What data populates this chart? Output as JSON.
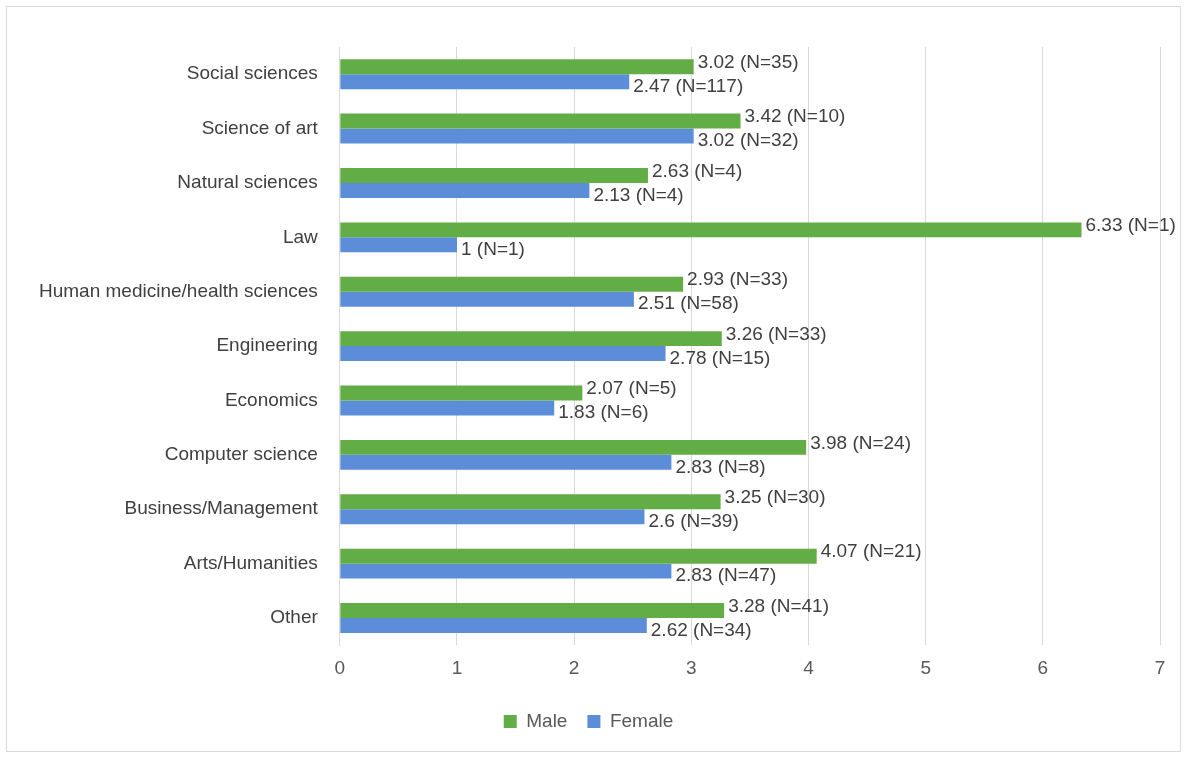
{
  "chart_data": {
    "type": "bar",
    "orientation": "horizontal",
    "categories": [
      "Social sciences",
      "Science of art",
      "Natural sciences",
      "Law",
      "Human medicine/health sciences",
      "Engineering",
      "Economics",
      "Computer science",
      "Business/Management",
      "Arts/Humanities",
      "Other"
    ],
    "series": [
      {
        "name": "Male",
        "color": "#63ad47",
        "values": [
          3.02,
          3.42,
          2.63,
          6.33,
          2.93,
          3.26,
          2.07,
          3.98,
          3.25,
          4.07,
          3.28
        ],
        "value_labels": [
          "3.02 (N=35)",
          "3.42 (N=10)",
          "2.63 (N=4)",
          "6.33 (N=1)",
          "2.93 (N=33)",
          "3.26 (N=33)",
          "2.07 (N=5)",
          "3.98 (N=24)",
          "3.25 (N=30)",
          "4.07 (N=21)",
          "3.28 (N=41)"
        ]
      },
      {
        "name": "Female",
        "color": "#5b8dd9",
        "values": [
          2.47,
          3.02,
          2.13,
          1,
          2.51,
          2.78,
          1.83,
          2.83,
          2.6,
          2.83,
          2.62
        ],
        "value_labels": [
          "2.47 (N=117)",
          "3.02 (N=32)",
          "2.13 (N=4)",
          "1 (N=1)",
          "2.51 (N=58)",
          "2.78 (N=15)",
          "1.83 (N=6)",
          "2.83 (N=8)",
          "2.6 (N=39)",
          "2.83 (N=47)",
          "2.62 (N=34)"
        ]
      }
    ],
    "xlim": [
      0,
      7
    ],
    "xticks": [
      0,
      1,
      2,
      3,
      4,
      5,
      6,
      7
    ],
    "grid": "x",
    "legend": "bottom"
  }
}
